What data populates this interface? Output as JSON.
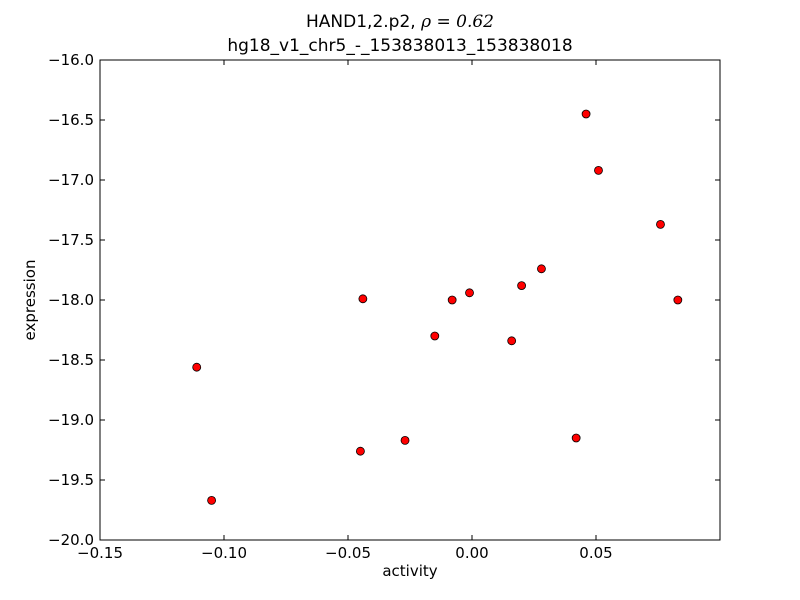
{
  "chart_data": {
    "type": "scatter",
    "title_line1": "HAND1,2.p2, ",
    "title_rho": "ρ = 0.62",
    "title_line2": "hg18_v1_chr5_-_153838013_153838018",
    "xlabel": "activity",
    "ylabel": "expression",
    "xlim": [
      -0.15,
      0.1
    ],
    "ylim": [
      -20.0,
      -16.0
    ],
    "xticks": [
      -0.15,
      -0.1,
      -0.05,
      0.0,
      0.05
    ],
    "xtick_labels": [
      "−0.15",
      "−0.10",
      "−0.05",
      "0.00",
      "0.05"
    ],
    "yticks": [
      -16.0,
      -16.5,
      -17.0,
      -17.5,
      -18.0,
      -18.5,
      -19.0,
      -19.5,
      -20.0
    ],
    "ytick_labels": [
      "−16.0",
      "−16.5",
      "−17.0",
      "−17.5",
      "−18.0",
      "−18.5",
      "−19.0",
      "−19.5",
      "−20.0"
    ],
    "marker_color": "#ff0000",
    "points": [
      {
        "x": -0.111,
        "y": -18.56
      },
      {
        "x": -0.105,
        "y": -19.67
      },
      {
        "x": -0.044,
        "y": -17.99
      },
      {
        "x": -0.045,
        "y": -19.26
      },
      {
        "x": -0.027,
        "y": -19.17
      },
      {
        "x": -0.015,
        "y": -18.3
      },
      {
        "x": -0.008,
        "y": -18.0
      },
      {
        "x": -0.001,
        "y": -17.94
      },
      {
        "x": 0.016,
        "y": -18.34
      },
      {
        "x": 0.02,
        "y": -17.88
      },
      {
        "x": 0.028,
        "y": -17.74
      },
      {
        "x": 0.042,
        "y": -19.15
      },
      {
        "x": 0.046,
        "y": -16.45
      },
      {
        "x": 0.051,
        "y": -16.92
      },
      {
        "x": 0.076,
        "y": -17.37
      },
      {
        "x": 0.083,
        "y": -18.0
      }
    ]
  }
}
